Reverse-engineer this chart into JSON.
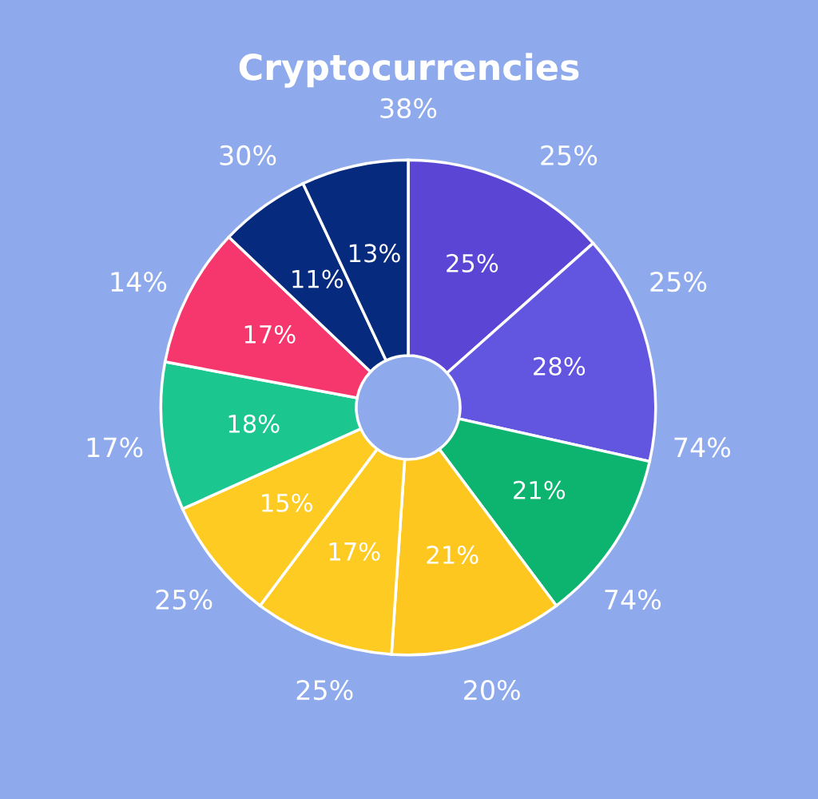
{
  "chart_data": {
    "type": "donut",
    "title": "Cryptocurrencies",
    "categories": [
      null,
      null,
      null,
      null,
      null,
      null,
      null,
      null,
      null,
      null
    ],
    "values": [
      25,
      28,
      21,
      21,
      17,
      15,
      18,
      17,
      11,
      13
    ],
    "value_labels": [
      "25%",
      "28%",
      "21%",
      "21%",
      "17%",
      "15%",
      "18%",
      "17%",
      "11%",
      "13%"
    ],
    "colors": [
      "#5b45d4",
      "#6255e0",
      "#0db46f",
      "#fdc720",
      "#fdcb22",
      "#fdcb22",
      "#1cc78f",
      "#f5376d",
      "#062a7d",
      "#062a7d"
    ],
    "annotations": [
      "38%",
      "25%",
      "25%",
      "74%",
      "74%",
      "20%",
      "25%",
      "25%",
      "17%",
      "14%",
      "30%"
    ]
  }
}
